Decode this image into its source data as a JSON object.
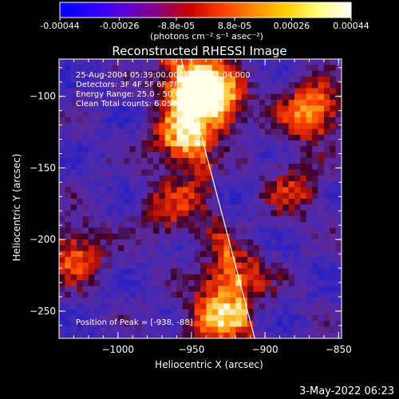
{
  "colorbar": {
    "tick_labels": [
      "-0.00044",
      "-0.00026",
      "-8.8e-05",
      "8.8e-05",
      "0.00026",
      "0.00044"
    ],
    "tick_values": [
      -0.00044,
      -0.00026,
      -8.8e-05,
      8.8e-05,
      0.00026,
      0.00044
    ],
    "range": [
      -0.00044,
      0.00044
    ],
    "unit_label": "(photons cm⁻² s⁻¹ asec⁻²)",
    "colors": [
      "#0000ff",
      "#2a00ff",
      "#5a00d8",
      "#8a0080",
      "#c80000",
      "#ff3a00",
      "#ff8c00",
      "#ffd000",
      "#ffff80",
      "#ffffff"
    ]
  },
  "chart_data": {
    "type": "heatmap",
    "title": "Reconstructed RHESSI Image",
    "xlabel": "Heliocentric X (arcsec)",
    "ylabel": "Heliocentric Y (arcsec)",
    "xlim": [
      -1040,
      -848
    ],
    "ylim": [
      -269,
      -74
    ],
    "x_ticks": [
      -1000,
      -950,
      -900,
      -850
    ],
    "y_ticks": [
      -100,
      -150,
      -200,
      -250
    ],
    "x_tick_labels": [
      "−1000",
      "−950",
      "−900",
      "−850"
    ],
    "y_tick_labels": [
      "−100",
      "−150",
      "−200",
      "−250"
    ],
    "annotations": [
      "25-Aug-2004 05:39:00.000 to 05:43:04.000",
      "Detectors: 3F 4F 5F 6F 7F 8F Att 0",
      "Energy Range: 25.0 - 50.0 keV",
      "Clean     Total counts: 6.05e+03"
    ],
    "peak_label": "Position of Peak = [-938, -88]",
    "peak": [
      -938,
      -88
    ],
    "limb_line": [
      [
        -957,
        -74
      ],
      [
        -907,
        -269
      ]
    ],
    "bright_sources": [
      {
        "x": -935,
        "y": -105,
        "intensity": 1.0
      },
      {
        "x": -948,
        "y": -88,
        "intensity": 0.9
      },
      {
        "x": -868,
        "y": -110,
        "intensity": 0.85
      },
      {
        "x": -958,
        "y": -132,
        "intensity": 0.7
      },
      {
        "x": -1030,
        "y": -210,
        "intensity": 0.65
      },
      {
        "x": -918,
        "y": -225,
        "intensity": 0.6
      },
      {
        "x": -935,
        "y": -255,
        "intensity": 0.75
      },
      {
        "x": -880,
        "y": -165,
        "intensity": 0.45
      },
      {
        "x": -965,
        "y": -180,
        "intensity": 0.45
      }
    ]
  },
  "footer": {
    "date": "3-May-2022 06:23"
  }
}
